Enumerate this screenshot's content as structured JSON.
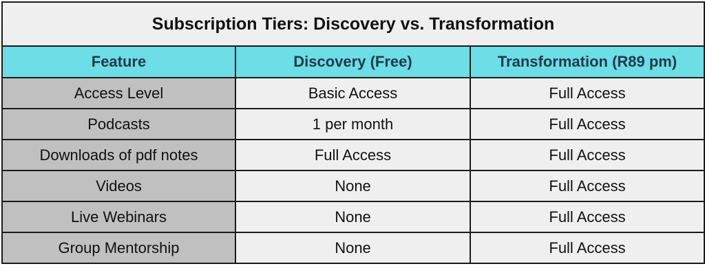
{
  "header": {
    "title": "Subscription Tiers: Discovery vs. Transformation"
  },
  "table": {
    "columns": [
      "Feature",
      "Discovery (Free)",
      "Transformation (R89 pm)"
    ],
    "rows": [
      [
        "Access Level",
        "Basic Access",
        "Full Access"
      ],
      [
        "Podcasts",
        "1 per month",
        "Full Access"
      ],
      [
        "Downloads of pdf notes",
        "Full Access",
        "Full Access"
      ],
      [
        "Videos",
        "None",
        "Full Access"
      ],
      [
        "Live Webinars",
        "None",
        "Full Access"
      ],
      [
        "Group Mentorship",
        "None",
        "Full Access"
      ]
    ]
  }
}
